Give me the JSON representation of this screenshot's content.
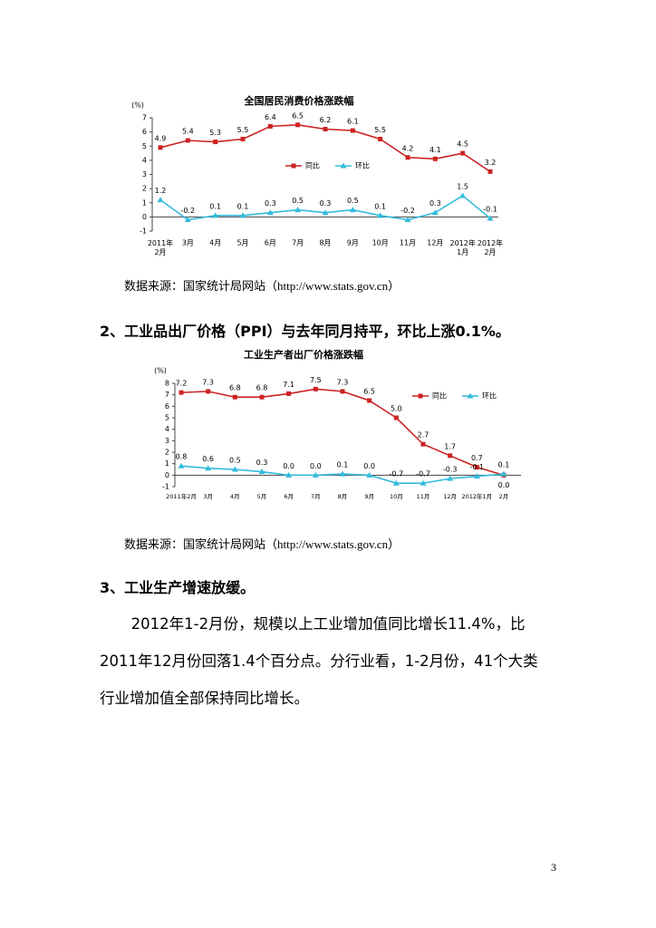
{
  "chart_data": [
    {
      "type": "line",
      "title": "全国居民消费价格涨跌幅",
      "y_label": "(%)",
      "categories": [
        "2011年2月",
        "3月",
        "4月",
        "5月",
        "6月",
        "7月",
        "8月",
        "9月",
        "10月",
        "11月",
        "12月",
        "2012年1月",
        "2012年2月"
      ],
      "series": [
        {
          "name": "同比",
          "color": "#cc2222",
          "marker": "square",
          "values": [
            4.9,
            5.4,
            5.3,
            5.5,
            6.4,
            6.5,
            6.2,
            6.1,
            5.5,
            4.2,
            4.1,
            4.5,
            3.2
          ]
        },
        {
          "name": "环比",
          "color": "#33bbdd",
          "marker": "triangle",
          "values": [
            1.2,
            -0.2,
            0.1,
            0.1,
            0.3,
            0.5,
            0.3,
            0.5,
            0.1,
            -0.2,
            0.3,
            1.5,
            -0.1
          ]
        }
      ],
      "ylim": [
        -1,
        7
      ],
      "yticks": [
        -1,
        0,
        1,
        2,
        3,
        4,
        5,
        6,
        7
      ],
      "grid": false
    },
    {
      "type": "line",
      "title": "工业生产者出厂价格涨跌幅",
      "y_label": "(%)",
      "categories": [
        "2011年2月",
        "3月",
        "4月",
        "5月",
        "6月",
        "7月",
        "8月",
        "9月",
        "10月",
        "11月",
        "12月",
        "2012年1月",
        "2月"
      ],
      "series": [
        {
          "name": "同比",
          "color": "#cc2222",
          "marker": "square",
          "values": [
            7.2,
            7.3,
            6.8,
            6.8,
            7.1,
            7.5,
            7.3,
            6.5,
            5.0,
            2.7,
            1.7,
            0.7,
            0.0
          ],
          "value_labels": [
            "7.2",
            "7.3",
            "6.8",
            "6.8",
            "7.1",
            "7.5",
            "7.3",
            "6.5",
            "5.0",
            "2.7",
            "1.7",
            "0.7",
            "0.0"
          ]
        },
        {
          "name": "环比",
          "color": "#33bbdd",
          "marker": "triangle",
          "values": [
            0.8,
            0.6,
            0.5,
            0.3,
            0.0,
            0.0,
            0.1,
            0.0,
            -0.7,
            -0.7,
            -0.3,
            -0.1,
            0.1
          ],
          "value_labels": [
            "0.8",
            "0.6",
            "0.5",
            "0.3",
            "0.0",
            "0.0",
            "0.1",
            "0.0",
            "-0.7",
            "-0.7",
            "-0.3",
            "-0.1",
            "0.1"
          ]
        }
      ],
      "ylim": [
        -1,
        8
      ],
      "yticks": [
        -1,
        0,
        1,
        2,
        3,
        4,
        5,
        6,
        7,
        8
      ],
      "grid": false
    }
  ],
  "document": {
    "sources": [
      "数据来源：国家统计局网站（http://www.stats.gov.cn）",
      "数据来源：国家统计局网站（http://www.stats.gov.cn）"
    ],
    "headings": [
      "2、工业品出厂价格（PPI）与去年同月持平，环比上涨0.1%。",
      "3、工业生产增速放缓。"
    ],
    "paragraph": "2012年1-2月份，规模以上工业增加值同比增长11.4%，比2011年12月份回落1.4个百分点。分行业看，1-2月份，41个大类行业增加值全部保持同比增长。",
    "page_number": "3"
  }
}
